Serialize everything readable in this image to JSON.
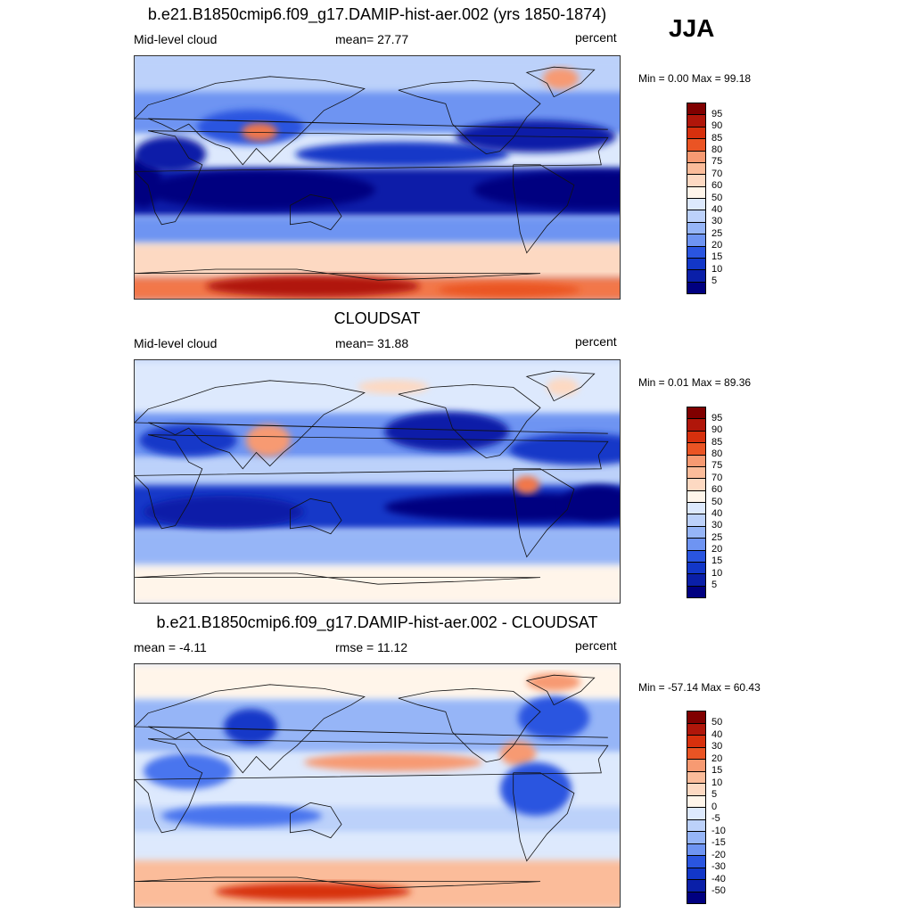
{
  "season": "JJA",
  "colors": {
    "scale": [
      "#000080",
      "#0a1fa8",
      "#1237c8",
      "#2a55e0",
      "#4a74ee",
      "#6e94f2",
      "#96b5f7",
      "#bcd1fa",
      "#dde9fd",
      "#fff5ea",
      "#fdd9c2",
      "#fbbc9a",
      "#f79a72",
      "#f2774a",
      "#ea5424",
      "#d7300d",
      "#b0160a",
      "#800000"
    ]
  },
  "panels": [
    {
      "id": "model",
      "title": "b.e21.B1850cmip6.f09_g17.DAMIP-hist-aer.002 (yrs 1850-1874)",
      "left_label": "Mid-level cloud",
      "center_label": "mean=  27.77",
      "right_label": "percent",
      "minmax": "Min =   0.00 Max =  99.18",
      "colorbar_ticks": [
        "95",
        "90",
        "85",
        "80",
        "75",
        "70",
        "60",
        "50",
        "40",
        "30",
        "25",
        "20",
        "15",
        "10",
        "5"
      ]
    },
    {
      "id": "obs",
      "title": "CLOUDSAT",
      "left_label": "Mid-level cloud",
      "center_label": "mean=  31.88",
      "right_label": "percent",
      "minmax": "Min =   0.01 Max =  89.36",
      "colorbar_ticks": [
        "95",
        "90",
        "85",
        "80",
        "75",
        "70",
        "60",
        "50",
        "40",
        "30",
        "25",
        "20",
        "15",
        "10",
        "5"
      ]
    },
    {
      "id": "diff",
      "title": "b.e21.B1850cmip6.f09_g17.DAMIP-hist-aer.002 - CLOUDSAT",
      "left_label": "mean =  -4.11",
      "center_label": "rmse =  11.12",
      "right_label": "percent",
      "minmax": "Min = -57.14 Max =  60.43",
      "colorbar_ticks": [
        "50",
        "40",
        "30",
        "20",
        "15",
        "10",
        "5",
        "0",
        "-5",
        "-10",
        "-15",
        "-20",
        "-30",
        "-40",
        "-50"
      ]
    }
  ],
  "chart_data": [
    {
      "type": "heatmap",
      "title": "b.e21.B1850cmip6.f09_g17.DAMIP-hist-aer.002 (yrs 1850-1874)",
      "variable": "Mid-level cloud",
      "units": "percent",
      "mean": 27.77,
      "min": 0.0,
      "max": 99.18,
      "levels": [
        5,
        10,
        15,
        20,
        25,
        30,
        40,
        50,
        60,
        70,
        75,
        80,
        85,
        90,
        95
      ]
    },
    {
      "type": "heatmap",
      "title": "CLOUDSAT",
      "variable": "Mid-level cloud",
      "units": "percent",
      "mean": 31.88,
      "min": 0.01,
      "max": 89.36,
      "levels": [
        5,
        10,
        15,
        20,
        25,
        30,
        40,
        50,
        60,
        70,
        75,
        80,
        85,
        90,
        95
      ]
    },
    {
      "type": "heatmap",
      "title": "b.e21.B1850cmip6.f09_g17.DAMIP-hist-aer.002 - CLOUDSAT",
      "units": "percent",
      "mean": -4.11,
      "rmse": 11.12,
      "min": -57.14,
      "max": 60.43,
      "levels": [
        -50,
        -40,
        -30,
        -20,
        -15,
        -10,
        -5,
        0,
        5,
        10,
        15,
        20,
        30,
        40,
        50
      ]
    }
  ]
}
